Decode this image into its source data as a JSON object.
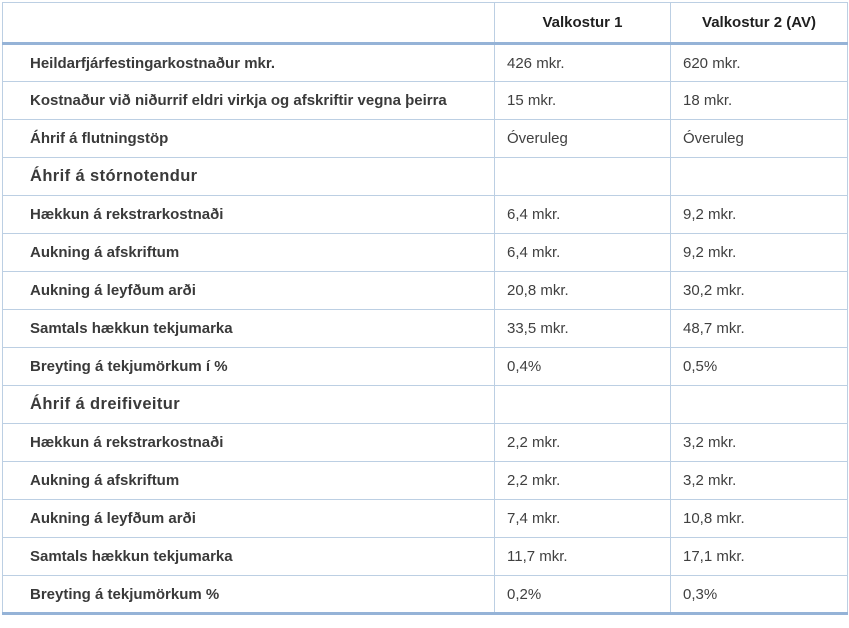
{
  "table": {
    "columns": [
      {
        "label": ""
      },
      {
        "label": "Valkostur 1"
      },
      {
        "label": "Valkostur 2 (AV)"
      }
    ],
    "rows": [
      {
        "label": "Heildarfjárfestingarkostnaður mkr.",
        "v1": "426 mkr.",
        "v2": "620 mkr.",
        "section": false
      },
      {
        "label": "Kostnaður við niðurrif eldri virkja og afskriftir vegna þeirra",
        "v1": "15 mkr.",
        "v2": "18 mkr.",
        "section": false
      },
      {
        "label": "Áhrif á flutningstöp",
        "v1": "Óveruleg",
        "v2": "Óveruleg",
        "section": false
      },
      {
        "label": "Áhrif á stórnotendur",
        "v1": "",
        "v2": "",
        "section": true
      },
      {
        "label": "Hækkun á rekstrarkostnaði",
        "v1": "6,4 mkr.",
        "v2": "9,2 mkr.",
        "section": false
      },
      {
        "label": "Aukning á afskriftum",
        "v1": "6,4 mkr.",
        "v2": "9,2 mkr.",
        "section": false
      },
      {
        "label": "Aukning á leyfðum arði",
        "v1": "20,8 mkr.",
        "v2": "30,2 mkr.",
        "section": false
      },
      {
        "label": "Samtals hækkun tekjumarka",
        "v1": "33,5 mkr.",
        "v2": "48,7 mkr.",
        "section": false
      },
      {
        "label": "Breyting á tekjumörkum í %",
        "v1": "0,4%",
        "v2": "0,5%",
        "section": false
      },
      {
        "label": "Áhrif á dreifiveitur",
        "v1": "",
        "v2": "",
        "section": true
      },
      {
        "label": "Hækkun á rekstrarkostnaði",
        "v1": "2,2 mkr.",
        "v2": "3,2 mkr.",
        "section": false
      },
      {
        "label": "Aukning á afskriftum",
        "v1": "2,2 mkr.",
        "v2": "3,2 mkr.",
        "section": false
      },
      {
        "label": "Aukning á leyfðum arði",
        "v1": "7,4 mkr.",
        "v2": "10,8 mkr.",
        "section": false
      },
      {
        "label": "Samtals hækkun tekjumarka",
        "v1": "11,7 mkr.",
        "v2": "17,1 mkr.",
        "section": false
      },
      {
        "label": "Breyting á tekjumörkum %",
        "v1": "0,2%",
        "v2": "0,3%",
        "section": false
      }
    ],
    "colors": {
      "border_thick": "#95B3D7",
      "border_thin": "#BCCFE3",
      "label_text": "#3A3A3A",
      "value_text": "#404040"
    }
  }
}
